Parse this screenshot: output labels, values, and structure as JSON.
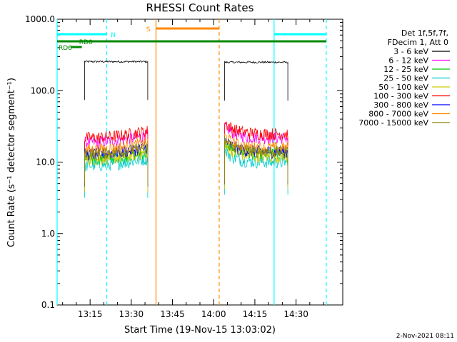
{
  "chart_data": {
    "type": "line",
    "title": "RHESSI Count Rates",
    "xlabel": "Start Time (19-Nov-15 13:03:02)",
    "ylabel": "Count Rate (s⁻¹ detector segment⁻¹)",
    "y_scale": "log",
    "ylim": [
      0.1,
      1000
    ],
    "xlim_minutes": [
      13.03,
      14.47
    ],
    "x_ticks": [
      "13:15",
      "13:30",
      "13:45",
      "14:00",
      "14:15",
      "14:30"
    ],
    "y_ticks": [
      "0.1",
      "1.0",
      "10.0",
      "100.0",
      "1000.0"
    ],
    "legend": {
      "header": [
        "Det 1f,5f,7f,",
        "FDecim 1, Att 0"
      ],
      "placement": "right"
    },
    "series": [
      {
        "name": "3 - 6 keV",
        "color": "#000000",
        "levels": [
          255,
          250
        ]
      },
      {
        "name": "6 - 12 keV",
        "color": "#ff00ff",
        "levels": [
          19,
          22
        ]
      },
      {
        "name": "12 - 25 keV",
        "color": "#00cc00",
        "levels": [
          11,
          13
        ]
      },
      {
        "name": "25 - 50 keV",
        "color": "#00cccc",
        "levels": [
          9,
          10
        ]
      },
      {
        "name": "50 - 100 keV",
        "color": "#cccc00",
        "levels": [
          11,
          12
        ]
      },
      {
        "name": "100 - 300 keV",
        "color": "#ff0000",
        "levels": [
          22,
          25
        ]
      },
      {
        "name": "300 - 800 keV",
        "color": "#0000ff",
        "levels": [
          13,
          14
        ]
      },
      {
        "name": "800 - 7000 keV",
        "color": "#ff8800",
        "levels": [
          15,
          16
        ]
      },
      {
        "name": "7000 - 15000 keV",
        "color": "#888800",
        "levels": [
          13,
          14
        ]
      }
    ],
    "intervals": [
      {
        "start": "13:13",
        "end": "13:36"
      },
      {
        "start": "14:04",
        "end": "14:27"
      }
    ],
    "flags": [
      {
        "label": "N",
        "color": "#00ffff",
        "ranges": [
          [
            "13:03",
            "13:21"
          ],
          [
            "14:22",
            "14:41"
          ]
        ]
      },
      {
        "label": "S",
        "color": "#ff8800",
        "ranges": [
          [
            "13:39",
            "14:02"
          ]
        ]
      },
      {
        "label": "RD0",
        "color": "#008800",
        "ranges": [
          [
            "13:03",
            "14:41"
          ]
        ]
      },
      {
        "label": "RD6",
        "color": "#008800",
        "ranges": [
          [
            "13:08",
            "13:12"
          ]
        ]
      }
    ],
    "vlines": [
      {
        "t": "13:03",
        "color": "#00ffff",
        "style": "solid"
      },
      {
        "t": "13:21",
        "color": "#00ffff",
        "style": "dashed"
      },
      {
        "t": "13:39",
        "color": "#ff8800",
        "style": "solid"
      },
      {
        "t": "14:02",
        "color": "#ff8800",
        "style": "dashed"
      },
      {
        "t": "14:22",
        "color": "#00ffff",
        "style": "solid"
      },
      {
        "t": "14:41",
        "color": "#00ffff",
        "style": "dashed"
      }
    ],
    "footer": "2-Nov-2021 08:11"
  }
}
